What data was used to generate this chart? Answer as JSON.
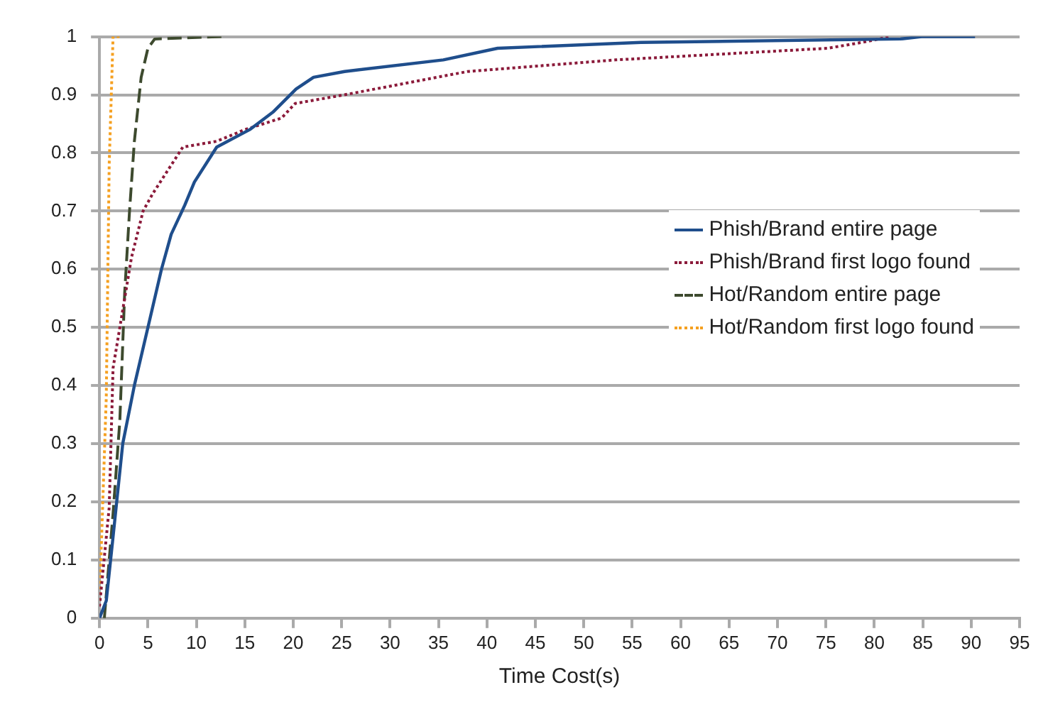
{
  "chart_data": {
    "type": "line",
    "xlabel": "Time Cost(s)",
    "xlim": [
      0,
      95
    ],
    "xticks": [
      0,
      5,
      10,
      15,
      20,
      25,
      30,
      35,
      40,
      45,
      50,
      55,
      60,
      65,
      70,
      75,
      80,
      85,
      90,
      95
    ],
    "ylim": [
      0,
      1
    ],
    "yticks": [
      0,
      0.1,
      0.2,
      0.3,
      0.4,
      0.5,
      0.6,
      0.7,
      0.8,
      0.9,
      1
    ],
    "grid": "y",
    "legend": "right",
    "marker": "none",
    "series": [
      {
        "name": "Phish/Brand entire page",
        "color": "#1f4e8c",
        "line_style": "solid",
        "x": [
          0,
          0.7,
          1.4,
          2.4,
          3.6,
          5,
          6.4,
          7.4,
          8.8,
          9.8,
          12.1,
          15.5,
          17.9,
          20.3,
          22.1,
          25.3,
          35.5,
          41.1,
          55.9,
          82.7,
          84.9,
          90.4
        ],
        "values": [
          0,
          0.03,
          0.14,
          0.3,
          0.4,
          0.5,
          0.6,
          0.66,
          0.71,
          0.75,
          0.81,
          0.84,
          0.87,
          0.91,
          0.93,
          0.94,
          0.96,
          0.98,
          0.99,
          0.996,
          1,
          1
        ]
      },
      {
        "name": "Phish/Brand first logo found",
        "color": "#8b1a3a",
        "line_style": "dotted",
        "x": [
          0,
          1,
          1.4,
          2.1,
          3.3,
          4.5,
          5.5,
          8.6,
          12.1,
          15,
          18.8,
          20.2,
          25.3,
          38,
          53.3,
          75.2,
          78.7,
          81.7
        ],
        "values": [
          0.02,
          0.19,
          0.43,
          0.5,
          0.62,
          0.7,
          0.73,
          0.81,
          0.82,
          0.84,
          0.86,
          0.885,
          0.9,
          0.94,
          0.96,
          0.98,
          0.99,
          1
        ]
      },
      {
        "name": "Hot/Random entire page",
        "color": "#3d4a2e",
        "line_style": "dashed",
        "x": [
          0.5,
          1.4,
          2.1,
          2.6,
          3.1,
          3.6,
          4.3,
          5,
          5.7,
          12.6
        ],
        "values": [
          0,
          0.18,
          0.34,
          0.56,
          0.7,
          0.82,
          0.93,
          0.98,
          0.996,
          1
        ]
      },
      {
        "name": "Hot/Random first logo found",
        "color": "#f5a020",
        "line_style": "dotted",
        "x": [
          0,
          0.7,
          1,
          1.4,
          2.1
        ],
        "values": [
          0.03,
          0.38,
          0.78,
          1,
          1
        ]
      }
    ]
  }
}
